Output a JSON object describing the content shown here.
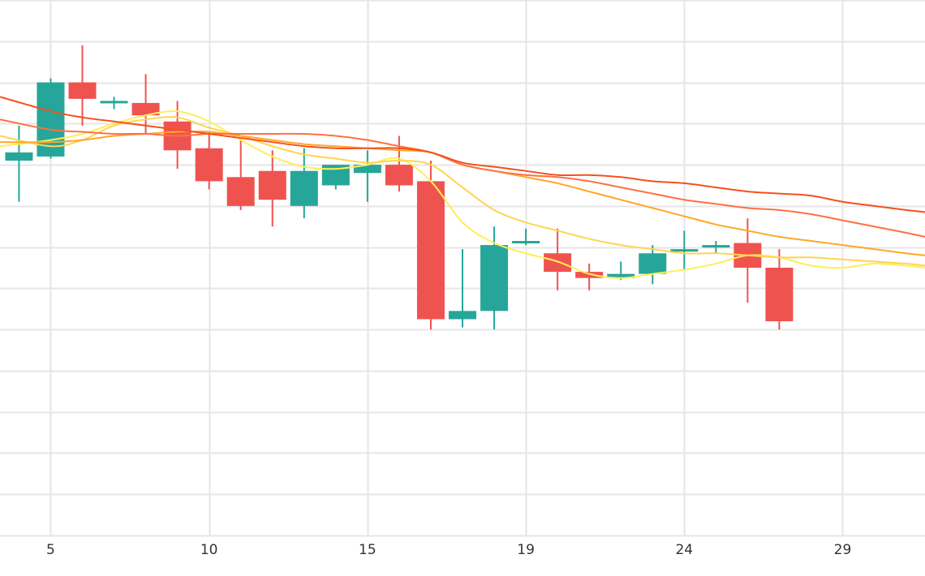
{
  "chart_data": {
    "type": "candlestick",
    "title": "",
    "xlabel": "",
    "ylabel": "",
    "grid": true,
    "x_ticks": [
      "5",
      "10",
      "15",
      "19",
      "24",
      "29"
    ],
    "x_tick_index": [
      5,
      10,
      15,
      20,
      25,
      30
    ],
    "xlim": [
      3.4,
      32.6
    ],
    "ylim": [
      0,
      13
    ],
    "colors": {
      "up": "#26a69a",
      "down": "#ef5350",
      "grid": "#e6e6e6"
    },
    "candles": [
      {
        "i": 4,
        "open": 9.1,
        "high": 9.95,
        "low": 8.1,
        "close": 9.3
      },
      {
        "i": 5,
        "open": 9.2,
        "high": 11.1,
        "low": 9.15,
        "close": 11.0
      },
      {
        "i": 6,
        "open": 11.0,
        "high": 11.9,
        "low": 9.95,
        "close": 10.6
      },
      {
        "i": 7,
        "open": 10.5,
        "high": 10.65,
        "low": 10.35,
        "close": 10.55
      },
      {
        "i": 8,
        "open": 10.5,
        "high": 11.2,
        "low": 9.75,
        "close": 10.2
      },
      {
        "i": 9,
        "open": 10.05,
        "high": 10.55,
        "low": 8.9,
        "close": 9.35
      },
      {
        "i": 10,
        "open": 9.4,
        "high": 9.8,
        "low": 8.4,
        "close": 8.6
      },
      {
        "i": 11,
        "open": 8.7,
        "high": 9.6,
        "low": 7.9,
        "close": 8.0
      },
      {
        "i": 12,
        "open": 8.85,
        "high": 9.35,
        "low": 7.5,
        "close": 8.15
      },
      {
        "i": 13,
        "open": 8.0,
        "high": 9.4,
        "low": 7.7,
        "close": 8.85
      },
      {
        "i": 14,
        "open": 8.5,
        "high": 9.0,
        "low": 8.4,
        "close": 9.0
      },
      {
        "i": 15,
        "open": 8.8,
        "high": 9.35,
        "low": 8.1,
        "close": 9.0
      },
      {
        "i": 16,
        "open": 9.0,
        "high": 9.7,
        "low": 8.35,
        "close": 8.5
      },
      {
        "i": 17,
        "open": 8.6,
        "high": 9.1,
        "low": 5.0,
        "close": 5.25
      },
      {
        "i": 18,
        "open": 5.25,
        "high": 6.95,
        "low": 5.05,
        "close": 5.45
      },
      {
        "i": 19,
        "open": 5.45,
        "high": 7.5,
        "low": 5.0,
        "close": 7.05
      },
      {
        "i": 20,
        "open": 7.1,
        "high": 7.45,
        "low": 7.05,
        "close": 7.15
      },
      {
        "i": 21,
        "open": 6.85,
        "high": 7.45,
        "low": 5.95,
        "close": 6.4
      },
      {
        "i": 22,
        "open": 6.4,
        "high": 6.6,
        "low": 5.95,
        "close": 6.25
      },
      {
        "i": 23,
        "open": 6.25,
        "high": 6.65,
        "low": 6.2,
        "close": 6.35
      },
      {
        "i": 24,
        "open": 6.35,
        "high": 7.05,
        "low": 6.1,
        "close": 6.85
      },
      {
        "i": 25,
        "open": 6.9,
        "high": 7.4,
        "low": 6.45,
        "close": 6.95
      },
      {
        "i": 26,
        "open": 7.0,
        "high": 7.15,
        "low": 6.85,
        "close": 7.05
      },
      {
        "i": 27,
        "open": 7.1,
        "high": 7.7,
        "low": 5.65,
        "close": 6.5
      },
      {
        "i": 28,
        "open": 6.5,
        "high": 6.95,
        "low": 5.0,
        "close": 5.2
      }
    ],
    "series": [
      {
        "color": "#ffee58",
        "x": [
          3.4,
          5,
          6,
          7,
          8,
          9,
          10,
          11,
          12,
          13,
          14,
          15,
          16,
          17,
          18,
          19,
          20,
          21,
          22,
          23,
          24,
          25,
          26,
          27,
          28,
          29,
          30,
          31,
          32,
          32.6
        ],
        "values": [
          9.45,
          9.6,
          9.75,
          10.0,
          10.2,
          10.3,
          10.05,
          9.6,
          9.2,
          8.95,
          8.9,
          9.0,
          9.15,
          8.6,
          7.6,
          7.1,
          6.85,
          6.65,
          6.35,
          6.25,
          6.35,
          6.45,
          6.6,
          6.8,
          6.75,
          6.55,
          6.5,
          6.6,
          6.55,
          6.5
        ]
      },
      {
        "color": "#ffd54f",
        "x": [
          3.4,
          5,
          6,
          7,
          8,
          9,
          10,
          11,
          12,
          13,
          14,
          15,
          16,
          17,
          18,
          19,
          20,
          21,
          22,
          23,
          24,
          25,
          26,
          27,
          28,
          29,
          30,
          31,
          32,
          32.6
        ],
        "values": [
          9.7,
          9.45,
          9.6,
          9.95,
          10.1,
          10.15,
          9.9,
          9.7,
          9.45,
          9.25,
          9.15,
          9.05,
          9.1,
          9.0,
          8.45,
          7.9,
          7.6,
          7.4,
          7.2,
          7.05,
          6.95,
          6.85,
          6.85,
          6.8,
          6.75,
          6.75,
          6.7,
          6.65,
          6.6,
          6.55
        ]
      },
      {
        "color": "#ffa726",
        "x": [
          3.4,
          5,
          6,
          7,
          8,
          9,
          10,
          11,
          12,
          13,
          14,
          15,
          16,
          17,
          18,
          19,
          20,
          21,
          22,
          23,
          24,
          25,
          26,
          27,
          28,
          29,
          30,
          31,
          32,
          32.6
        ],
        "values": [
          9.55,
          9.55,
          9.6,
          9.7,
          9.75,
          9.8,
          9.8,
          9.7,
          9.6,
          9.5,
          9.45,
          9.4,
          9.35,
          9.3,
          9.0,
          8.85,
          8.7,
          8.55,
          8.35,
          8.15,
          7.95,
          7.75,
          7.55,
          7.4,
          7.25,
          7.15,
          7.05,
          6.95,
          6.85,
          6.8
        ]
      },
      {
        "color": "#ff7043",
        "x": [
          3.4,
          5,
          6,
          7,
          8,
          9,
          10,
          11,
          12,
          13,
          14,
          15,
          16,
          17,
          18,
          19,
          20,
          21,
          22,
          23,
          24,
          25,
          26,
          27,
          28,
          29,
          30,
          31,
          32,
          32.6
        ],
        "values": [
          10.1,
          9.85,
          9.8,
          9.75,
          9.75,
          9.7,
          9.75,
          9.75,
          9.75,
          9.75,
          9.7,
          9.6,
          9.45,
          9.3,
          9.0,
          8.85,
          8.75,
          8.7,
          8.6,
          8.45,
          8.3,
          8.15,
          8.05,
          7.95,
          7.9,
          7.8,
          7.65,
          7.5,
          7.35,
          7.25
        ]
      },
      {
        "color": "#f4511e",
        "x": [
          3.4,
          5,
          6,
          7,
          8,
          9,
          10,
          11,
          12,
          13,
          14,
          15,
          16,
          17,
          18,
          19,
          20,
          21,
          22,
          23,
          24,
          25,
          26,
          27,
          28,
          29,
          30,
          31,
          32,
          32.6
        ],
        "values": [
          10.65,
          10.3,
          10.15,
          10.05,
          9.95,
          9.85,
          9.75,
          9.65,
          9.55,
          9.45,
          9.4,
          9.4,
          9.4,
          9.3,
          9.05,
          8.95,
          8.85,
          8.75,
          8.75,
          8.7,
          8.6,
          8.55,
          8.45,
          8.35,
          8.3,
          8.25,
          8.1,
          8.0,
          7.9,
          7.85
        ]
      }
    ]
  }
}
